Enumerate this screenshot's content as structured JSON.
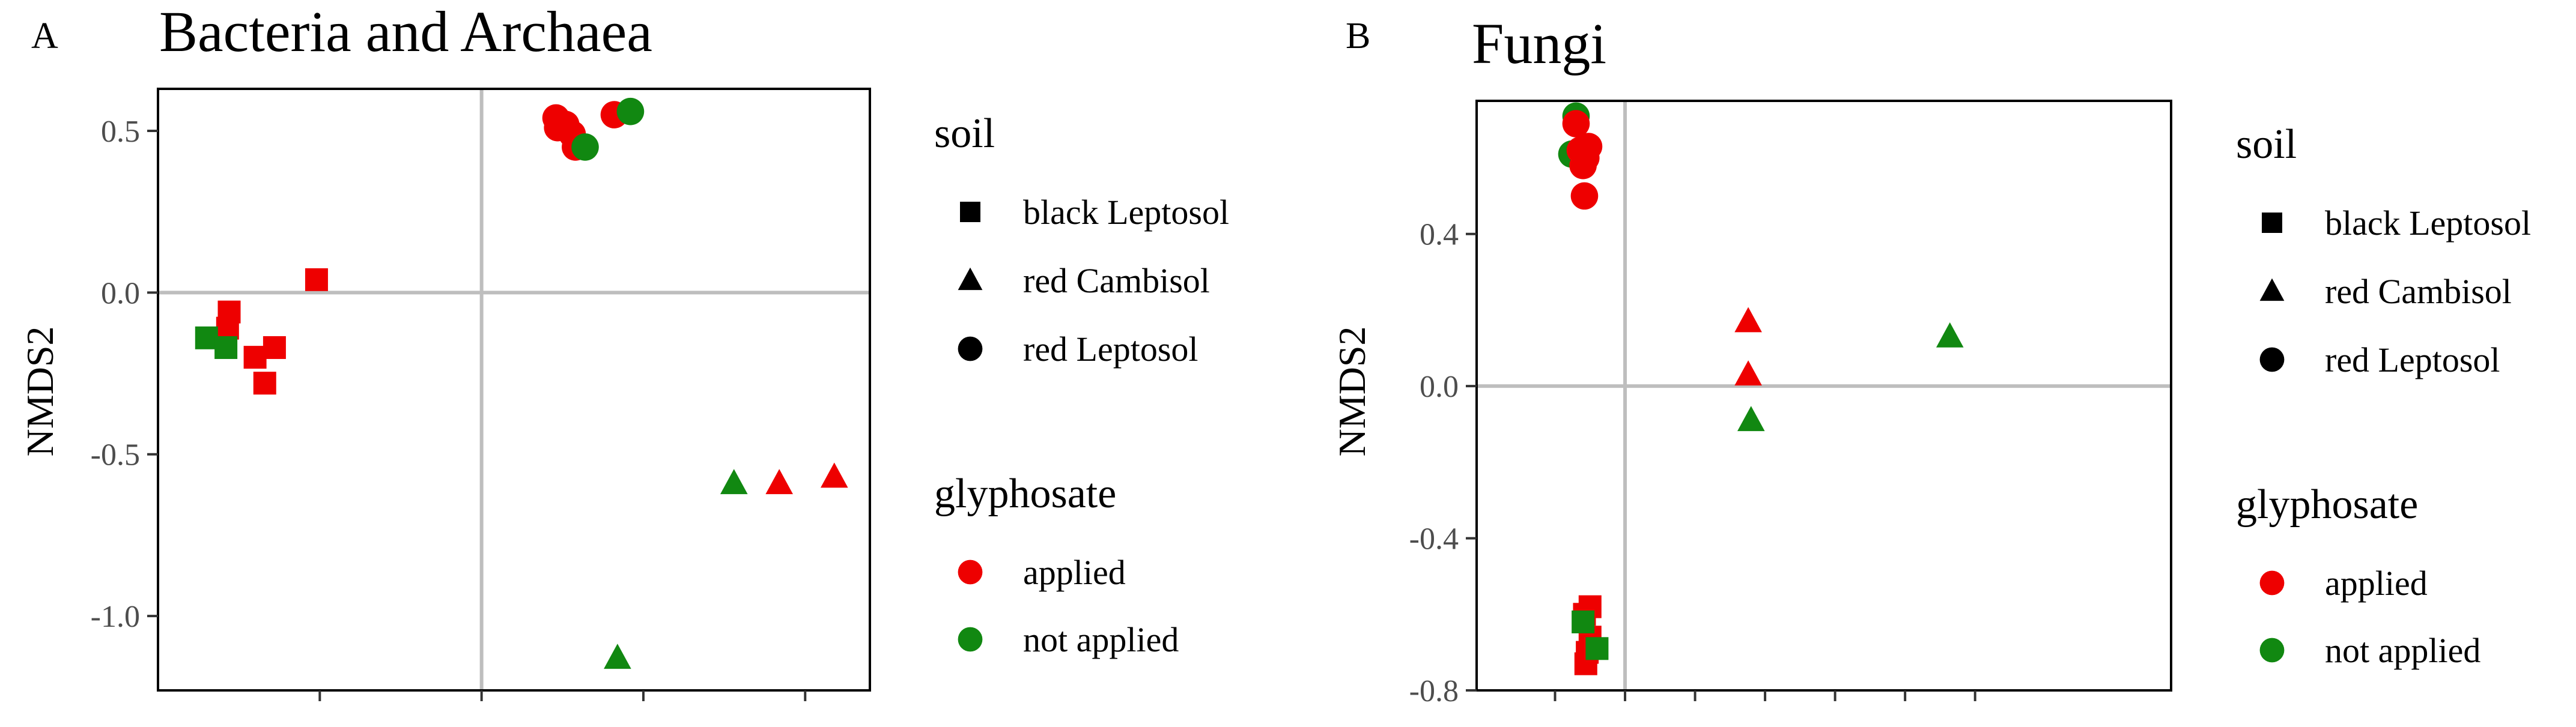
{
  "colors": {
    "applied": "#ee0000",
    "not_applied": "#118811",
    "zero_line": "#bebebe",
    "frame": "#000000",
    "legend_shape": "#000000"
  },
  "legend": {
    "soil_title": "soil",
    "soil_items": [
      {
        "label": "black Leptosol",
        "shape": "square"
      },
      {
        "label": "red Cambisol",
        "shape": "triangle"
      },
      {
        "label": "red Leptosol",
        "shape": "circle"
      }
    ],
    "glyphosate_title": "glyphosate",
    "glyphosate_items": [
      {
        "label": "applied",
        "color_key": "applied"
      },
      {
        "label": "not applied",
        "color_key": "not_applied"
      }
    ]
  },
  "chart_data": [
    {
      "type": "scatter",
      "panel": "A",
      "title": "Bacteria and Archaea",
      "xlabel": "",
      "ylabel": "NMDS2",
      "xlim": [
        -1.0,
        1.2
      ],
      "ylim": [
        -1.23,
        0.63
      ],
      "xticks": [
        -0.5,
        0.0,
        0.5,
        1.0
      ],
      "yticks": [
        0.5,
        0.0,
        -0.5,
        -1.0
      ],
      "ytick_labels": [
        "0.5",
        "0.0",
        "-0.5",
        "-1.0"
      ],
      "grid": false,
      "zero_lines": true,
      "legend_position": "right",
      "points": [
        {
          "x": -0.51,
          "y": 0.04,
          "soil": "black Leptosol",
          "glyphosate": "applied"
        },
        {
          "x": -0.78,
          "y": -0.06,
          "soil": "black Leptosol",
          "glyphosate": "applied"
        },
        {
          "x": -0.785,
          "y": -0.11,
          "soil": "black Leptosol",
          "glyphosate": "applied"
        },
        {
          "x": -0.7,
          "y": -0.2,
          "soil": "black Leptosol",
          "glyphosate": "applied"
        },
        {
          "x": -0.64,
          "y": -0.17,
          "soil": "black Leptosol",
          "glyphosate": "applied"
        },
        {
          "x": -0.67,
          "y": -0.28,
          "soil": "black Leptosol",
          "glyphosate": "applied"
        },
        {
          "x": -0.85,
          "y": -0.14,
          "soil": "black Leptosol",
          "glyphosate": "not applied"
        },
        {
          "x": -0.79,
          "y": -0.17,
          "soil": "black Leptosol",
          "glyphosate": "not applied"
        },
        {
          "x": 0.78,
          "y": -0.59,
          "soil": "red Cambisol",
          "glyphosate": "not applied"
        },
        {
          "x": 0.92,
          "y": -0.59,
          "soil": "red Cambisol",
          "glyphosate": "applied"
        },
        {
          "x": 1.09,
          "y": -0.57,
          "soil": "red Cambisol",
          "glyphosate": "applied"
        },
        {
          "x": 0.42,
          "y": -1.13,
          "soil": "red Cambisol",
          "glyphosate": "not applied"
        },
        {
          "x": 0.23,
          "y": 0.54,
          "soil": "red Leptosol",
          "glyphosate": "applied"
        },
        {
          "x": 0.235,
          "y": 0.51,
          "soil": "red Leptosol",
          "glyphosate": "applied"
        },
        {
          "x": 0.26,
          "y": 0.52,
          "soil": "red Leptosol",
          "glyphosate": "applied"
        },
        {
          "x": 0.28,
          "y": 0.49,
          "soil": "red Leptosol",
          "glyphosate": "applied"
        },
        {
          "x": 0.29,
          "y": 0.45,
          "soil": "red Leptosol",
          "glyphosate": "applied"
        },
        {
          "x": 0.41,
          "y": 0.55,
          "soil": "red Leptosol",
          "glyphosate": "applied"
        },
        {
          "x": 0.32,
          "y": 0.45,
          "soil": "red Leptosol",
          "glyphosate": "not applied"
        },
        {
          "x": 0.46,
          "y": 0.56,
          "soil": "red Leptosol",
          "glyphosate": "not applied"
        }
      ]
    },
    {
      "type": "scatter",
      "panel": "B",
      "title": "Fungi",
      "xlabel": "",
      "ylabel": "NMDS2",
      "xlim": [
        -1.06,
        3.9
      ],
      "ylim": [
        -0.8,
        0.75
      ],
      "xticks": [
        -0.5,
        0.0,
        0.5,
        1.0,
        1.5,
        2.0,
        2.5
      ],
      "yticks": [
        0.4,
        0.0,
        -0.4,
        -0.8
      ],
      "ytick_labels": [
        "0.4",
        "0.0",
        "-0.4",
        "-0.8"
      ],
      "grid": false,
      "zero_lines": true,
      "legend_position": "right",
      "points": [
        {
          "x": -0.35,
          "y": 0.71,
          "soil": "red Leptosol",
          "glyphosate": "not applied"
        },
        {
          "x": -0.38,
          "y": 0.61,
          "soil": "red Leptosol",
          "glyphosate": "not applied"
        },
        {
          "x": -0.35,
          "y": 0.69,
          "soil": "red Leptosol",
          "glyphosate": "applied"
        },
        {
          "x": -0.32,
          "y": 0.62,
          "soil": "red Leptosol",
          "glyphosate": "applied"
        },
        {
          "x": -0.28,
          "y": 0.6,
          "soil": "red Leptosol",
          "glyphosate": "applied"
        },
        {
          "x": -0.3,
          "y": 0.58,
          "soil": "red Leptosol",
          "glyphosate": "applied"
        },
        {
          "x": -0.26,
          "y": 0.63,
          "soil": "red Leptosol",
          "glyphosate": "applied"
        },
        {
          "x": -0.29,
          "y": 0.5,
          "soil": "red Leptosol",
          "glyphosate": "applied"
        },
        {
          "x": 0.88,
          "y": 0.17,
          "soil": "red Cambisol",
          "glyphosate": "applied"
        },
        {
          "x": 0.88,
          "y": 0.03,
          "soil": "red Cambisol",
          "glyphosate": "applied"
        },
        {
          "x": 0.9,
          "y": -0.09,
          "soil": "red Cambisol",
          "glyphosate": "not applied"
        },
        {
          "x": 2.32,
          "y": 0.13,
          "soil": "red Cambisol",
          "glyphosate": "not applied"
        },
        {
          "x": -0.25,
          "y": -0.58,
          "soil": "black Leptosol",
          "glyphosate": "applied"
        },
        {
          "x": -0.29,
          "y": -0.6,
          "soil": "black Leptosol",
          "glyphosate": "applied"
        },
        {
          "x": -0.25,
          "y": -0.66,
          "soil": "black Leptosol",
          "glyphosate": "applied"
        },
        {
          "x": -0.27,
          "y": -0.7,
          "soil": "black Leptosol",
          "glyphosate": "applied"
        },
        {
          "x": -0.28,
          "y": -0.73,
          "soil": "black Leptosol",
          "glyphosate": "applied"
        },
        {
          "x": -0.3,
          "y": -0.62,
          "soil": "black Leptosol",
          "glyphosate": "not applied"
        },
        {
          "x": -0.2,
          "y": -0.69,
          "soil": "black Leptosol",
          "glyphosate": "not applied"
        }
      ]
    }
  ]
}
